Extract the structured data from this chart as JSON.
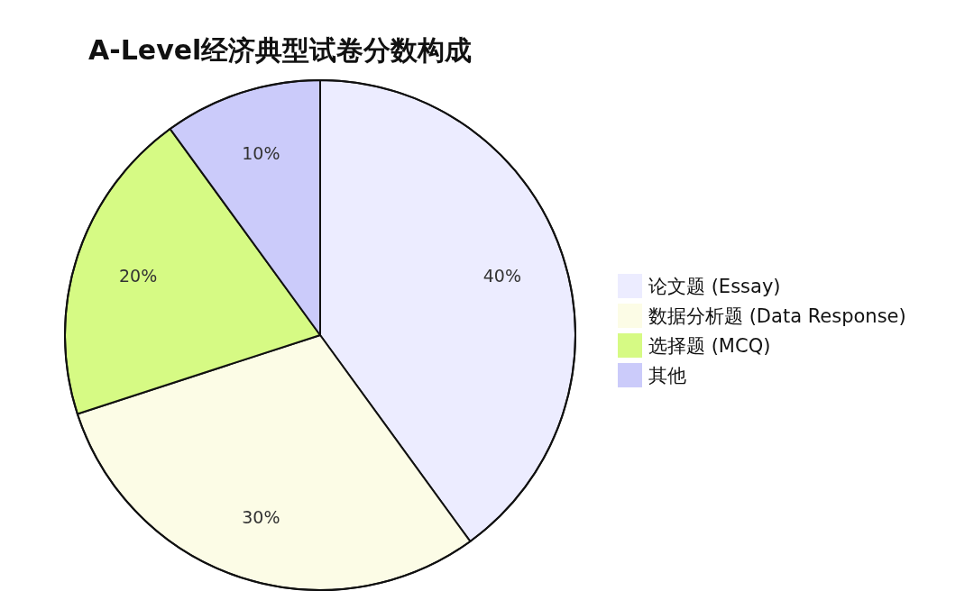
{
  "chart_data": {
    "type": "pie",
    "title": "A-Level经济典型试卷分数构成",
    "categories": [
      "论文题 (Essay)",
      "数据分析题 (Data Response)",
      "选择题 (MCQ)",
      "其他"
    ],
    "values": [
      40,
      30,
      20,
      10
    ],
    "colors": [
      "#ececff",
      "#fcfce6",
      "#d6fa84",
      "#cbcbfa"
    ],
    "value_labels": [
      "40%",
      "30%",
      "20%",
      "10%"
    ],
    "legend": "right"
  }
}
